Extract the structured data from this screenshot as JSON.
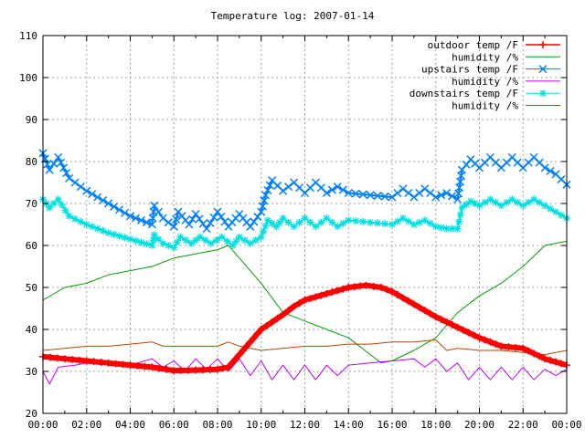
{
  "chart_data": {
    "type": "line",
    "title": "Temperature log: 2007-01-14",
    "xlabel": "",
    "ylabel": "",
    "xlim": [
      0,
      24
    ],
    "ylim": [
      20,
      110
    ],
    "x_ticks": [
      "00:00",
      "02:00",
      "04:00",
      "06:00",
      "08:00",
      "10:00",
      "12:00",
      "14:00",
      "16:00",
      "18:00",
      "20:00",
      "22:00",
      "00:00"
    ],
    "y_ticks": [
      "20",
      "30",
      "40",
      "50",
      "60",
      "70",
      "80",
      "90",
      "100",
      "110"
    ],
    "grid": true,
    "legend_position": "top-right",
    "series": [
      {
        "name": "outdoor temp /F",
        "color": "#ff0000",
        "marker": "plus",
        "points": [
          [
            0,
            33.5
          ],
          [
            1,
            33
          ],
          [
            2,
            32.5
          ],
          [
            3,
            32
          ],
          [
            4,
            31.5
          ],
          [
            5,
            31
          ],
          [
            6,
            30.2
          ],
          [
            7,
            30.3
          ],
          [
            8,
            30.5
          ],
          [
            8.5,
            31
          ],
          [
            9,
            34
          ],
          [
            9.5,
            37
          ],
          [
            10,
            40
          ],
          [
            11,
            43.5
          ],
          [
            11.5,
            45.5
          ],
          [
            12,
            47
          ],
          [
            13,
            48.5
          ],
          [
            14,
            50
          ],
          [
            14.8,
            50.5
          ],
          [
            15.5,
            50
          ],
          [
            16,
            49
          ],
          [
            17,
            46
          ],
          [
            18,
            43
          ],
          [
            19,
            40.5
          ],
          [
            20,
            38
          ],
          [
            21,
            36
          ],
          [
            22,
            35.5
          ],
          [
            23,
            33
          ],
          [
            24,
            31.5
          ]
        ]
      },
      {
        "name": "humidity /%",
        "color": "#00a000",
        "marker": "none",
        "points": [
          [
            0,
            47
          ],
          [
            1,
            50
          ],
          [
            2,
            51
          ],
          [
            3,
            53
          ],
          [
            4,
            54
          ],
          [
            5,
            55
          ],
          [
            6,
            57
          ],
          [
            7,
            58
          ],
          [
            8,
            59
          ],
          [
            8.5,
            60
          ],
          [
            9,
            57
          ],
          [
            10,
            51
          ],
          [
            11,
            44
          ],
          [
            11.5,
            43
          ],
          [
            12,
            42
          ],
          [
            13,
            40
          ],
          [
            14,
            38
          ],
          [
            15,
            34
          ],
          [
            15.5,
            32
          ],
          [
            16,
            32.5
          ],
          [
            17,
            35
          ],
          [
            18,
            38
          ],
          [
            18.5,
            41
          ],
          [
            19,
            44
          ],
          [
            20,
            48
          ],
          [
            21,
            51
          ],
          [
            22,
            55
          ],
          [
            23,
            60
          ],
          [
            24,
            61
          ]
        ]
      },
      {
        "name": "upstairs temp /F",
        "color": "#0080ff",
        "marker": "x",
        "points": [
          [
            0,
            82
          ],
          [
            0.3,
            78
          ],
          [
            0.7,
            81
          ],
          [
            1.2,
            76
          ],
          [
            2,
            73
          ],
          [
            3,
            70
          ],
          [
            4,
            67
          ],
          [
            5,
            65
          ],
          [
            5.1,
            69.5
          ],
          [
            5.5,
            66.5
          ],
          [
            6,
            64.5
          ],
          [
            6.2,
            68
          ],
          [
            6.7,
            65
          ],
          [
            7,
            67.5
          ],
          [
            7.5,
            64
          ],
          [
            8,
            68
          ],
          [
            8.5,
            64.5
          ],
          [
            9,
            67.5
          ],
          [
            9.5,
            64.5
          ],
          [
            10,
            68
          ],
          [
            10.2,
            72
          ],
          [
            10.5,
            75.5
          ],
          [
            11,
            73
          ],
          [
            11.5,
            75
          ],
          [
            12,
            72.5
          ],
          [
            12.5,
            75
          ],
          [
            13,
            72.5
          ],
          [
            13.5,
            74
          ],
          [
            14,
            72.5
          ],
          [
            15,
            72
          ],
          [
            16,
            71.5
          ],
          [
            16.5,
            73.5
          ],
          [
            17,
            71.5
          ],
          [
            17.5,
            73.5
          ],
          [
            18,
            71.5
          ],
          [
            18.5,
            72.5
          ],
          [
            19,
            71
          ],
          [
            19.2,
            78
          ],
          [
            19.6,
            80.5
          ],
          [
            20,
            78.5
          ],
          [
            20.5,
            81
          ],
          [
            21,
            78.5
          ],
          [
            21.5,
            81
          ],
          [
            22,
            78.5
          ],
          [
            22.5,
            81
          ],
          [
            23,
            78.5
          ],
          [
            23.5,
            77
          ],
          [
            24,
            74.5
          ]
        ]
      },
      {
        "name": "humidity /%",
        "color": "#c000ff",
        "marker": "none",
        "points": [
          [
            0,
            30
          ],
          [
            0.3,
            27
          ],
          [
            0.7,
            31
          ],
          [
            1.5,
            31.5
          ],
          [
            2,
            32
          ],
          [
            3,
            32
          ],
          [
            4,
            31.5
          ],
          [
            5,
            33
          ],
          [
            5.5,
            31
          ],
          [
            6,
            32.5
          ],
          [
            6.5,
            30
          ],
          [
            7,
            33
          ],
          [
            7.5,
            30.5
          ],
          [
            8,
            33
          ],
          [
            8.5,
            30
          ],
          [
            9,
            33
          ],
          [
            9.5,
            29
          ],
          [
            10,
            32.5
          ],
          [
            10.5,
            28
          ],
          [
            11,
            31.5
          ],
          [
            11.5,
            28
          ],
          [
            12,
            31.5
          ],
          [
            12.5,
            28
          ],
          [
            13,
            31.5
          ],
          [
            13.5,
            29
          ],
          [
            14,
            31.5
          ],
          [
            15,
            32
          ],
          [
            16,
            32.5
          ],
          [
            17,
            33
          ],
          [
            17.5,
            31
          ],
          [
            18,
            33
          ],
          [
            18.5,
            30
          ],
          [
            19,
            32
          ],
          [
            19.5,
            28
          ],
          [
            20,
            31
          ],
          [
            20.5,
            28
          ],
          [
            21,
            31
          ],
          [
            21.5,
            28
          ],
          [
            22,
            31
          ],
          [
            22.5,
            28
          ],
          [
            23,
            30.5
          ],
          [
            23.5,
            29
          ],
          [
            24,
            30.5
          ]
        ]
      },
      {
        "name": "downstairs temp /F",
        "color": "#00e0e0",
        "marker": "star",
        "points": [
          [
            0,
            71
          ],
          [
            0.3,
            69
          ],
          [
            0.7,
            71
          ],
          [
            1.2,
            67
          ],
          [
            2,
            65
          ],
          [
            3,
            63
          ],
          [
            4,
            61.5
          ],
          [
            5,
            60
          ],
          [
            5.1,
            62.5
          ],
          [
            5.5,
            60.5
          ],
          [
            6,
            59.5
          ],
          [
            6.3,
            62
          ],
          [
            6.8,
            60.5
          ],
          [
            7.2,
            62
          ],
          [
            7.7,
            60.5
          ],
          [
            8.2,
            62
          ],
          [
            8.7,
            60
          ],
          [
            9,
            62
          ],
          [
            9.5,
            60.5
          ],
          [
            10,
            62
          ],
          [
            10.3,
            66
          ],
          [
            10.7,
            64.5
          ],
          [
            11,
            66.5
          ],
          [
            11.5,
            64.5
          ],
          [
            12,
            66.5
          ],
          [
            12.5,
            64.5
          ],
          [
            13,
            66.5
          ],
          [
            13.5,
            64.5
          ],
          [
            14,
            66
          ],
          [
            15,
            65.5
          ],
          [
            16,
            65
          ],
          [
            16.5,
            66.5
          ],
          [
            17,
            65
          ],
          [
            17.5,
            66
          ],
          [
            18,
            64.5
          ],
          [
            18.5,
            64
          ],
          [
            19,
            64
          ],
          [
            19.2,
            69
          ],
          [
            19.6,
            70.5
          ],
          [
            20,
            69.5
          ],
          [
            20.5,
            71
          ],
          [
            21,
            69.5
          ],
          [
            21.5,
            71
          ],
          [
            22,
            69.5
          ],
          [
            22.5,
            71
          ],
          [
            23,
            69.5
          ],
          [
            23.5,
            68
          ],
          [
            24,
            66.5
          ]
        ]
      },
      {
        "name": "humidity /%",
        "color": "#c04000",
        "marker": "none",
        "points": [
          [
            0,
            35
          ],
          [
            1,
            35.5
          ],
          [
            2,
            36
          ],
          [
            3,
            36
          ],
          [
            4,
            36.5
          ],
          [
            5,
            37
          ],
          [
            5.5,
            36
          ],
          [
            6,
            36
          ],
          [
            7,
            36
          ],
          [
            8,
            36
          ],
          [
            8.5,
            37
          ],
          [
            9,
            36
          ],
          [
            10,
            35
          ],
          [
            11,
            35.5
          ],
          [
            12,
            36
          ],
          [
            13,
            36
          ],
          [
            14,
            36.5
          ],
          [
            15,
            36.5
          ],
          [
            16,
            37
          ],
          [
            17,
            37
          ],
          [
            18,
            37.5
          ],
          [
            18.5,
            35
          ],
          [
            19,
            35.5
          ],
          [
            20,
            35
          ],
          [
            21,
            35
          ],
          [
            22,
            34.5
          ],
          [
            23,
            34
          ],
          [
            24,
            35
          ]
        ]
      }
    ]
  }
}
